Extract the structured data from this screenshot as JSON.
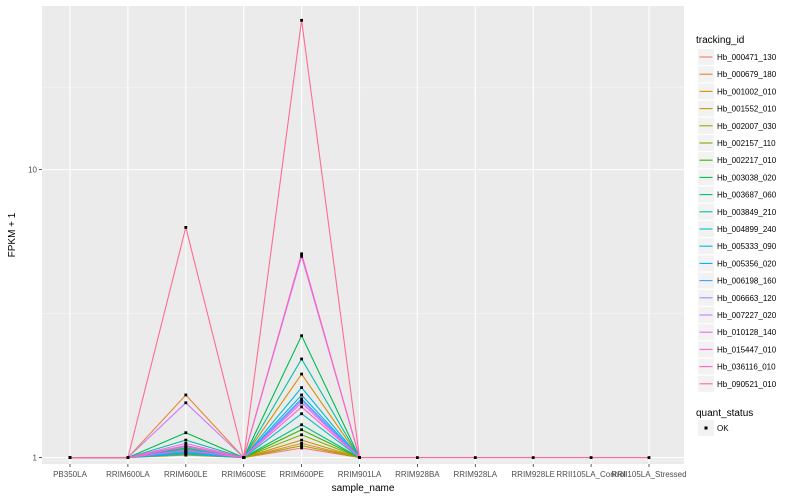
{
  "chart_data": {
    "type": "line",
    "xlabel": "sample_name",
    "ylabel": "FPKM + 1",
    "y_scale": "log10",
    "ylim": [
      0.95,
      37
    ],
    "y_ticks": [
      1,
      10
    ],
    "y_tick_labels": [
      "1",
      "10"
    ],
    "grid": true,
    "categories": [
      "PB350LA",
      "RRIM600LA",
      "RRIM600LE",
      "RRIM600SE",
      "RRIM600PE",
      "RRIM901LA",
      "RRIM928BA",
      "RRIM928LA",
      "RRIM928LE",
      "RRII105LA_Control",
      "RRII105LA_Stressed"
    ],
    "legend_title": "tracking_id",
    "legend_position": "right",
    "series": [
      {
        "name": "Hb_000471_130",
        "color": "#F8766D",
        "values": [
          1,
          1,
          1.05,
          1,
          1.08,
          1,
          null,
          null,
          null,
          null,
          null
        ]
      },
      {
        "name": "Hb_000679_180",
        "color": "#EA8331",
        "values": [
          1,
          1,
          1.65,
          1,
          1.12,
          1,
          null,
          null,
          null,
          null,
          null
        ]
      },
      {
        "name": "Hb_001002_010",
        "color": "#D89000",
        "values": [
          1,
          1,
          1.03,
          1,
          1.95,
          1,
          null,
          null,
          null,
          null,
          null
        ]
      },
      {
        "name": "Hb_001552_010",
        "color": "#C09B00",
        "values": [
          1,
          1,
          1.04,
          1,
          1.15,
          1,
          null,
          null,
          null,
          null,
          null
        ]
      },
      {
        "name": "Hb_002007_030",
        "color": "#A3A500",
        "values": [
          1,
          1,
          1.02,
          1,
          1.1,
          1,
          null,
          null,
          null,
          null,
          null
        ]
      },
      {
        "name": "Hb_002157_110",
        "color": "#7CAE00",
        "values": [
          1,
          1,
          1.06,
          1,
          1.2,
          1,
          null,
          null,
          null,
          null,
          null
        ]
      },
      {
        "name": "Hb_002217_010",
        "color": "#39B600",
        "values": [
          1,
          1,
          1.08,
          1,
          1.25,
          1,
          null,
          null,
          null,
          null,
          null
        ]
      },
      {
        "name": "Hb_003038_020",
        "color": "#00BB4E",
        "values": [
          1,
          1,
          1.22,
          1,
          2.65,
          1,
          null,
          null,
          null,
          null,
          null
        ]
      },
      {
        "name": "Hb_003687_060",
        "color": "#00BF7D",
        "values": [
          1,
          1,
          1.1,
          1,
          1.3,
          1,
          null,
          null,
          null,
          null,
          null
        ]
      },
      {
        "name": "Hb_003849_210",
        "color": "#00C1A3",
        "values": [
          1,
          1,
          1.15,
          1,
          2.2,
          1,
          null,
          null,
          null,
          null,
          null
        ]
      },
      {
        "name": "Hb_004899_240",
        "color": "#00BFC4",
        "values": [
          1,
          1,
          1.04,
          1,
          1.42,
          1,
          null,
          null,
          null,
          null,
          null
        ]
      },
      {
        "name": "Hb_005333_090",
        "color": "#00BAE0",
        "values": [
          1,
          1,
          1.07,
          1,
          1.75,
          1,
          null,
          null,
          null,
          null,
          null
        ]
      },
      {
        "name": "Hb_005356_020",
        "color": "#00B0F6",
        "values": [
          1,
          1,
          1.03,
          1,
          1.65,
          1,
          null,
          null,
          null,
          null,
          null
        ]
      },
      {
        "name": "Hb_006198_160",
        "color": "#35A2FF",
        "values": [
          1,
          1,
          1.05,
          1,
          1.6,
          1,
          null,
          null,
          null,
          null,
          null
        ]
      },
      {
        "name": "Hb_006663_120",
        "color": "#9590FF",
        "values": [
          1,
          1,
          1.09,
          1,
          1.58,
          1,
          null,
          null,
          null,
          null,
          null
        ]
      },
      {
        "name": "Hb_007227_020",
        "color": "#C77CFF",
        "values": [
          1,
          1,
          1.55,
          1,
          5.0,
          1,
          null,
          null,
          null,
          null,
          null
        ]
      },
      {
        "name": "Hb_010128_140",
        "color": "#E76BF3",
        "values": [
          1,
          1,
          1.12,
          1,
          1.55,
          1,
          null,
          null,
          null,
          null,
          null
        ]
      },
      {
        "name": "Hb_015447_010",
        "color": "#FA62DB",
        "values": [
          1,
          1,
          1.06,
          1,
          1.5,
          1,
          null,
          null,
          null,
          null,
          null
        ]
      },
      {
        "name": "Hb_036116_010",
        "color": "#FF62BC",
        "values": [
          1,
          1,
          1.1,
          1,
          5.1,
          1,
          null,
          null,
          null,
          null,
          null
        ]
      },
      {
        "name": "Hb_090521_010",
        "color": "#FF6C91",
        "values": [
          1,
          1,
          6.3,
          1,
          33,
          1,
          1,
          1,
          1,
          1,
          1
        ]
      }
    ],
    "point_legend_title": "quant_status",
    "point_legend_entries": [
      {
        "label": "OK",
        "color": "#000000"
      }
    ]
  }
}
